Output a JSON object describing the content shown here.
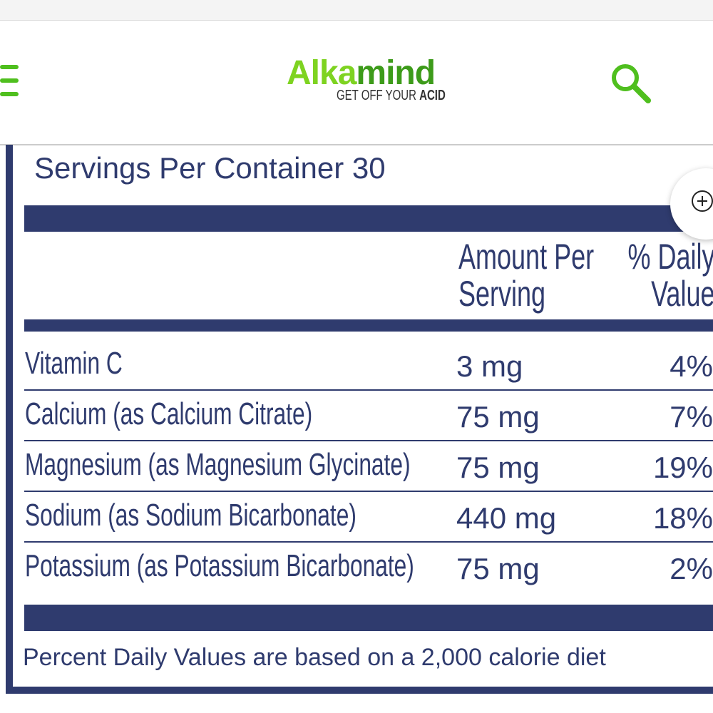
{
  "header": {
    "logo_light": "Alka",
    "logo_dark": "mind",
    "tagline": "GET OFF YOUR",
    "tagline_bold": "ACID"
  },
  "servings": "Servings Per Container 30",
  "table": {
    "columns": [
      "Amount Per",
      "Serving",
      "% Daily",
      "Value"
    ],
    "rows": [
      [
        "Vitamin C",
        "3 mg",
        "4%"
      ],
      [
        "Calcium (as Calcium Citrate)",
        "75 mg",
        "7%"
      ],
      [
        "Magnesium (as Magnesium Glycinate)",
        "75 mg",
        "19%"
      ],
      [
        "Sodium (as Sodium Bicarbonate)",
        "440 mg",
        "18%"
      ],
      [
        "Potassium (as Potassium Bicarbonate)",
        "75 mg",
        "2%"
      ]
    ]
  },
  "footnote": "Percent Daily Values are based on a 2,000 calorie diet"
}
